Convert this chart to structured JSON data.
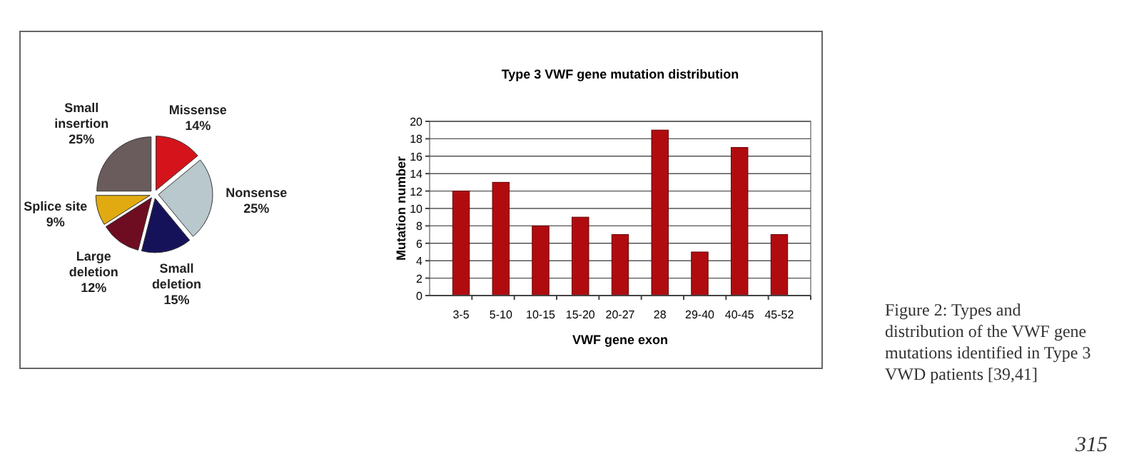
{
  "chart_data": [
    {
      "type": "pie",
      "categories": [
        "Missense",
        "Nonsense",
        "Small deletion",
        "Large deletion",
        "Splice site",
        "Small insertion"
      ],
      "values": [
        14,
        25,
        15,
        12,
        9,
        25
      ],
      "value_labels": [
        "14%",
        "25%",
        "15%",
        "12%",
        "9%",
        "25%"
      ],
      "colors": [
        "#d4141a",
        "#b8c8cc",
        "#16125a",
        "#6e0c22",
        "#e0aa10",
        "#6a5c5c"
      ]
    },
    {
      "type": "bar",
      "title": "Type 3  VWF gene mutation distribution",
      "xlabel": "VWF gene exon",
      "ylabel": "Mutation number",
      "categories": [
        "3-5",
        "5-10",
        "10-15",
        "15-20",
        "20-27",
        "28",
        "29-40",
        "40-45",
        "45-52"
      ],
      "values": [
        12,
        13,
        8,
        9,
        7,
        19,
        5,
        17,
        7
      ],
      "color": "#b00c10",
      "ylim": [
        0,
        20
      ],
      "yticks": [
        0,
        2,
        4,
        6,
        8,
        10,
        12,
        14,
        16,
        18,
        20
      ],
      "grid": "y",
      "annotations": [
        "Figure 2: Types and distribution of the VWF gene mutations identified in Type 3 VWD patients [39,41]",
        "315"
      ]
    }
  ]
}
